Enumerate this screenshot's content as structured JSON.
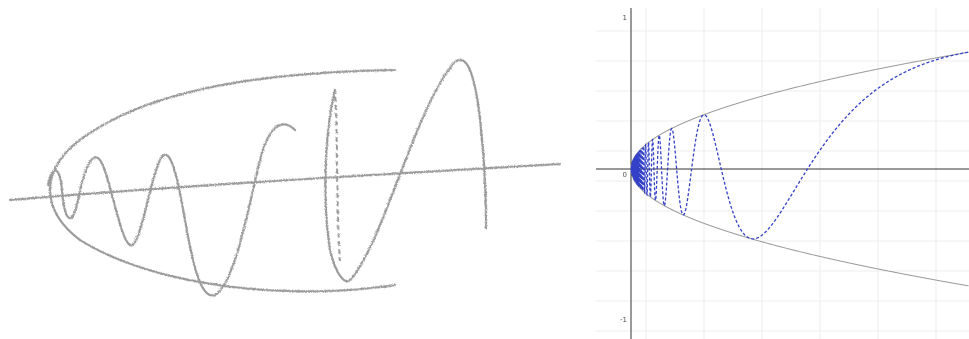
{
  "plot": {
    "tick_labels": [
      "1",
      "0",
      "-1"
    ]
  }
}
